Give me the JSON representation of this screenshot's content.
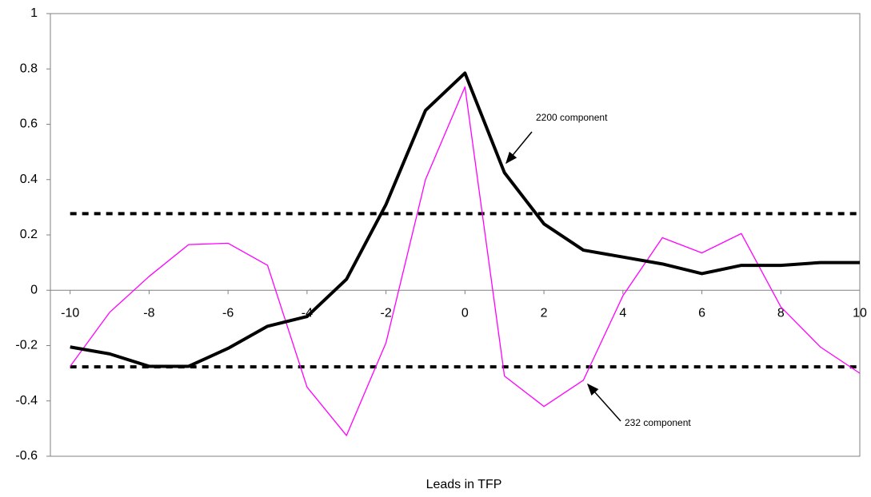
{
  "chart_data": {
    "type": "line",
    "x_label": "Leads in TFP",
    "x": [
      -10,
      -9,
      -8,
      -7,
      -6,
      -5,
      -4,
      -3,
      -2,
      -1,
      0,
      1,
      2,
      3,
      4,
      5,
      6,
      7,
      8,
      9,
      10
    ],
    "series": [
      {
        "name": "2200 component",
        "color": "#000000",
        "values": [
          -0.205,
          -0.23,
          -0.275,
          -0.275,
          -0.21,
          -0.13,
          -0.095,
          0.04,
          0.31,
          0.65,
          0.785,
          0.425,
          0.24,
          0.145,
          0.12,
          0.095,
          0.06,
          0.09,
          0.09,
          0.1,
          0.1
        ]
      },
      {
        "name": "232 component",
        "color": "#ff00ff",
        "values": [
          -0.275,
          -0.08,
          0.05,
          0.165,
          0.17,
          0.09,
          -0.35,
          -0.525,
          -0.19,
          0.4,
          0.735,
          -0.31,
          -0.42,
          -0.325,
          -0.02,
          0.19,
          0.135,
          0.205,
          -0.06,
          -0.205,
          -0.3
        ]
      }
    ],
    "reference_lines": [
      0.277,
      -0.277
    ],
    "xlim": [
      -10.5,
      10
    ],
    "xticks": [
      -10,
      -8,
      -6,
      -4,
      -2,
      0,
      2,
      4,
      6,
      8,
      10
    ],
    "ylim": [
      -0.6,
      1
    ],
    "yticks": [
      -0.6,
      -0.4,
      -0.2,
      0,
      0.2,
      0.4,
      0.6,
      0.8,
      1
    ]
  }
}
